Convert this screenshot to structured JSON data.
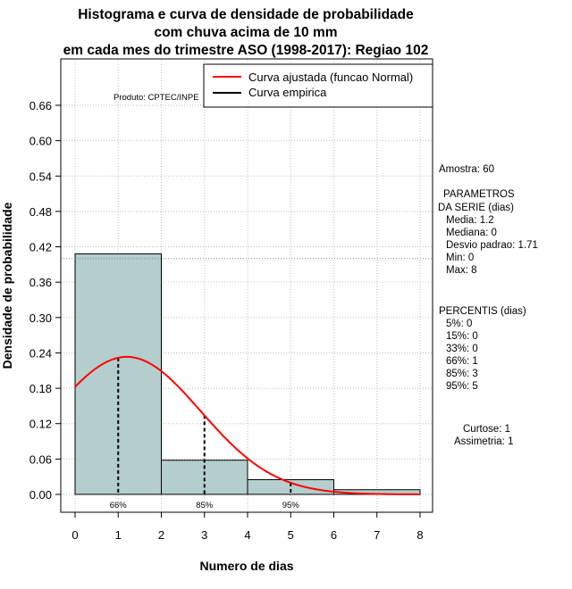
{
  "chart_data": {
    "type": "histogram",
    "title": [
      "Histograma e curva de densidade de probabilidade",
      "com chuva acima de 10 mm",
      "em cada mes do trimestre ASO (1998-2017): Regiao 102"
    ],
    "xlabel": "Numero de dias",
    "ylabel": "Densidade de probabilidade",
    "xlim": [
      0,
      8
    ],
    "ylim": [
      0,
      0.66
    ],
    "x_ticks": [
      0,
      1,
      2,
      3,
      4,
      5,
      6,
      7,
      8
    ],
    "y_ticks": [
      0.0,
      0.06,
      0.12,
      0.18,
      0.24,
      0.3,
      0.36,
      0.42,
      0.48,
      0.54,
      0.6,
      0.66
    ],
    "bars": [
      {
        "x0": 0,
        "x1": 2,
        "density": 0.408
      },
      {
        "x0": 2,
        "x1": 4,
        "density": 0.058
      },
      {
        "x0": 4,
        "x1": 6,
        "density": 0.025
      },
      {
        "x0": 6,
        "x1": 8,
        "density": 0.008
      }
    ],
    "normal_fit": {
      "mean": 1.2,
      "sd": 1.71,
      "x_from": 0,
      "x_to": 8
    },
    "reference_line_y": 0.4,
    "percentile_markers": [
      {
        "x": 1,
        "label": "66%"
      },
      {
        "x": 3,
        "label": "85%"
      },
      {
        "x": 5,
        "label": "95%"
      }
    ],
    "legend": {
      "position": "top-right",
      "entries": [
        {
          "label": "Curva ajustada (funcao Normal)",
          "color": "#ff0000"
        },
        {
          "label": "Curva empirica",
          "color": "#000000"
        }
      ]
    },
    "product_label": "Produto: CPTEC/INPE"
  },
  "colors": {
    "bar_fill": "#b4cdcd",
    "bar_border": "#000000",
    "curve": "#ff0000",
    "grid": "#bebebe"
  },
  "stats": {
    "amostra": "Amostra: 60",
    "param_header1": "PARAMETROS",
    "param_header2": "DA SERIE (dias)",
    "media": "Media: 1.2",
    "mediana": "Mediana: 0",
    "desvio": "Desvio padrao: 1.71",
    "min": "Min: 0",
    "max": "Max: 8",
    "percentis_header": "PERCENTIS (dias)",
    "p5": "5%: 0",
    "p15": "15%: 0",
    "p33": "33%: 0",
    "p66": "66%: 1",
    "p85": "85%: 3",
    "p95": "95%: 5",
    "curtose": "Curtose: 1",
    "assimetria": "Assimetria: 1"
  }
}
